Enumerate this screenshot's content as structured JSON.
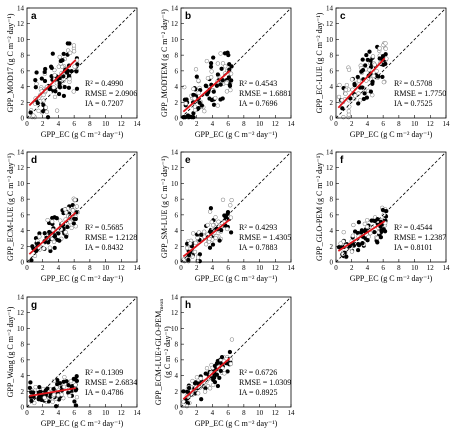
{
  "figure": {
    "xlabel": "GPP_EC (g C m⁻² day⁻¹)",
    "ticks": [
      "0",
      "2",
      "4",
      "6",
      "8",
      "10",
      "12",
      "14"
    ]
  },
  "chart_data": [
    {
      "type": "scatter",
      "panel": "a",
      "ylabel": "GPP_MOD17 (g C m⁻² day⁻¹)",
      "xlim": [
        0,
        14
      ],
      "ylim": [
        0,
        14
      ],
      "stats": [
        "R² = 0.4990",
        "RMSE = 2.0906",
        "IA = 0.7207"
      ],
      "fit": {
        "x": [
          0.3,
          6.2
        ],
        "y": [
          1.6,
          7.4
        ]
      },
      "spread": 1.7,
      "filled_ratio": 0.5
    },
    {
      "type": "scatter",
      "panel": "b",
      "ylabel": "GPP_MODTEM (g C m⁻² day⁻¹)",
      "xlim": [
        0,
        14
      ],
      "ylim": [
        0,
        14
      ],
      "stats": [
        "R² = 0.4543",
        "RMSE = 1.6881",
        "IA = 0.7696"
      ],
      "fit": {
        "x": [
          0.3,
          6.2
        ],
        "y": [
          0.8,
          6.0
        ]
      },
      "spread": 1.5,
      "filled_ratio": 0.5
    },
    {
      "type": "scatter",
      "panel": "c",
      "ylabel": "GPP_EC-LUE (g C m⁻² day⁻¹)",
      "xlim": [
        0,
        14
      ],
      "ylim": [
        0,
        14
      ],
      "stats": [
        "R² = 0.5708",
        "RMSE = 1.7750",
        "IA = 0.7525"
      ],
      "fit": {
        "x": [
          0.3,
          6.2
        ],
        "y": [
          1.3,
          7.6
        ]
      },
      "spread": 1.4,
      "filled_ratio": 0.45
    },
    {
      "type": "scatter",
      "panel": "d",
      "ylabel": "GPP_ECM-LUE (g C m⁻² day⁻¹)",
      "xlim": [
        0,
        14
      ],
      "ylim": [
        0,
        14
      ],
      "stats": [
        "R² = 0.5685",
        "RMSE = 1.2128",
        "IA = 0.8432"
      ],
      "fit": {
        "x": [
          0.3,
          6.2
        ],
        "y": [
          1.0,
          6.3
        ]
      },
      "spread": 1.1,
      "filled_ratio": 0.5
    },
    {
      "type": "scatter",
      "panel": "e",
      "ylabel": "GPP_SM-LUE (g C m⁻² day⁻¹)",
      "xlim": [
        0,
        14
      ],
      "ylim": [
        0,
        14
      ],
      "stats": [
        "R² = 0.4293",
        "RMSE = 1.4305",
        "IA = 0.7883"
      ],
      "fit": {
        "x": [
          0.3,
          6.2
        ],
        "y": [
          0.7,
          5.4
        ]
      },
      "spread": 1.2,
      "filled_ratio": 0.45
    },
    {
      "type": "scatter",
      "panel": "f",
      "ylabel": "GPP_GLO-PEM (g C m⁻² day⁻¹)",
      "xlim": [
        0,
        14
      ],
      "ylim": [
        0,
        14
      ],
      "stats": [
        "R² = 0.4544",
        "RMSE = 1.2387",
        "IA = 0.8101"
      ],
      "fit": {
        "x": [
          0.3,
          6.2
        ],
        "y": [
          1.4,
          5.2
        ]
      },
      "spread": 1.0,
      "filled_ratio": 0.55
    },
    {
      "type": "scatter",
      "panel": "g",
      "ylabel": "GPP_Wang (g C m⁻² day⁻¹)",
      "xlim": [
        0,
        14
      ],
      "ylim": [
        0,
        14
      ],
      "stats": [
        "R² = 0.1309",
        "RMSE = 2.6834",
        "IA = 0.4786"
      ],
      "fit": {
        "x": [
          0.3,
          6.2
        ],
        "y": [
          1.4,
          2.4
        ]
      },
      "spread": 0.8,
      "filled_ratio": 0.55
    },
    {
      "type": "scatter",
      "panel": "h",
      "ylabel": "GPP_ECM-LUE+GLO-PEM",
      "ylabel_sub": "mean",
      "ylabel_unit": "(g C m⁻² day⁻¹)",
      "xlim": [
        0,
        14
      ],
      "ylim": [
        0,
        14
      ],
      "stats": [
        "R² = 0.6726",
        "RMSE = 1.0309",
        "IA = 0.8925"
      ],
      "fit": {
        "x": [
          0.3,
          6.2
        ],
        "y": [
          1.0,
          6.2
        ]
      },
      "spread": 0.9,
      "filled_ratio": 0.5
    }
  ]
}
